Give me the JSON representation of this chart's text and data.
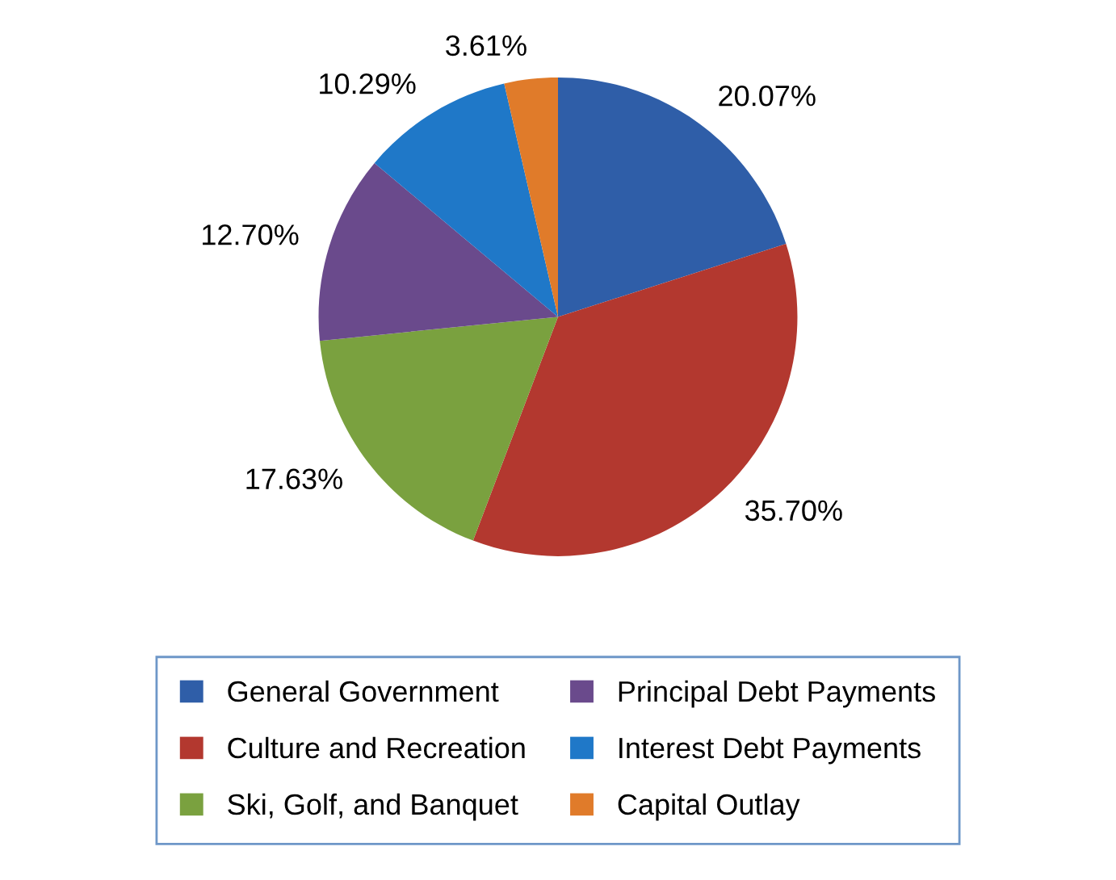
{
  "chart_data": {
    "type": "pie",
    "categories": [
      "General Government",
      "Culture and Recreation",
      "Ski, Golf, and Banquet",
      "Principal Debt Payments",
      "Interest Debt Payments",
      "Capital Outlay"
    ],
    "values": [
      20.07,
      35.7,
      17.63,
      12.7,
      10.29,
      3.61
    ],
    "value_labels": [
      "20.07%",
      "35.70%",
      "17.63%",
      "12.70%",
      "10.29%",
      "3.61%"
    ],
    "colors": [
      "#2f5ea8",
      "#b3382f",
      "#7aa13f",
      "#6a4a8c",
      "#1f78c8",
      "#e07b2a"
    ],
    "legend": "bottom"
  }
}
